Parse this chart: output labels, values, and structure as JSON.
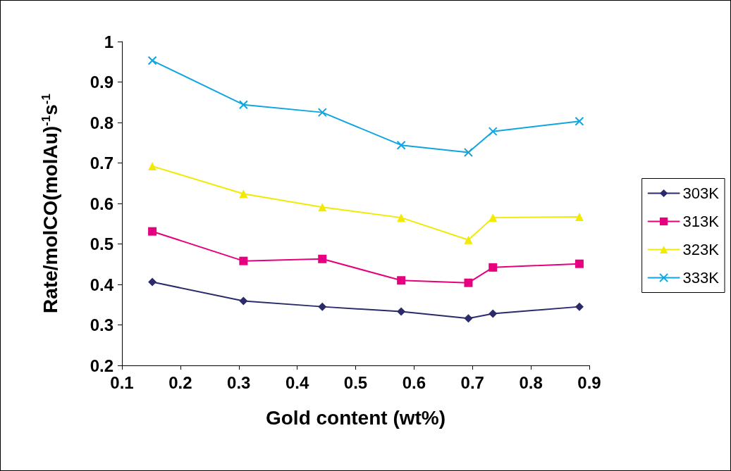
{
  "chart_data": {
    "type": "line",
    "xlabel": "Gold content (wt%)",
    "ylabel": "Rate/molCO(molAu)$^{-1}$s$^{-1}$",
    "x": [
      0.152,
      0.308,
      0.443,
      0.578,
      0.693,
      0.735,
      0.883
    ],
    "series": [
      {
        "name": "303K",
        "color": "#2b2b6b",
        "marker": "diamond",
        "values": [
          0.406,
          0.359,
          0.345,
          0.333,
          0.316,
          0.328,
          0.345
        ]
      },
      {
        "name": "313K",
        "color": "#e6007e",
        "marker": "square",
        "values": [
          0.531,
          0.458,
          0.463,
          0.41,
          0.404,
          0.442,
          0.451
        ]
      },
      {
        "name": "323K",
        "color": "#f2ea00",
        "marker": "triangle",
        "values": [
          0.692,
          0.624,
          0.591,
          0.565,
          0.51,
          0.565,
          0.567
        ]
      },
      {
        "name": "333K",
        "color": "#0ea5e0",
        "marker": "cross",
        "values": [
          0.953,
          0.844,
          0.825,
          0.744,
          0.726,
          0.778,
          0.803
        ]
      }
    ],
    "xlim": [
      0.1,
      0.9
    ],
    "xticks": [
      0.1,
      0.2,
      0.3,
      0.4,
      0.5,
      0.6,
      0.7,
      0.8,
      0.9
    ],
    "ylim": [
      0.2,
      1
    ],
    "yticks": [
      0.2,
      0.3,
      0.4,
      0.5,
      0.6,
      0.7,
      0.8,
      0.9,
      1
    ],
    "grid": false,
    "legend": "right",
    "line_style": "solid"
  }
}
